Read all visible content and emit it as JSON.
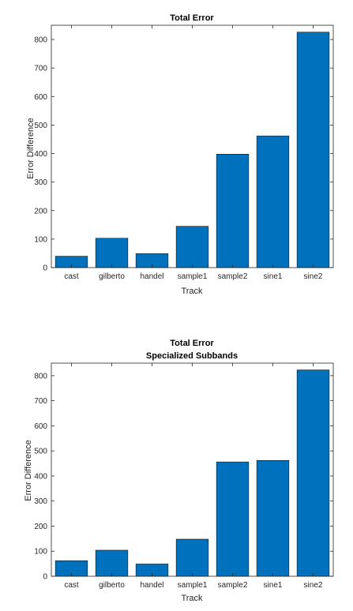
{
  "chart_data": [
    {
      "type": "bar",
      "title": "Total Error",
      "subtitle": "",
      "xlabel": "Track",
      "ylabel": "Error Difference",
      "categories": [
        "cast",
        "gilberto",
        "handel",
        "sample1",
        "sample2",
        "sine1",
        "sine2"
      ],
      "values": [
        40,
        103,
        49,
        145,
        398,
        462,
        826
      ],
      "ylim": [
        0,
        850
      ],
      "yticks": [
        0,
        100,
        200,
        300,
        400,
        500,
        600,
        700,
        800
      ],
      "grid": false,
      "bar_color": "#0072bd"
    },
    {
      "type": "bar",
      "title": "Total Error",
      "subtitle": "Specialized Subbands",
      "xlabel": "Track",
      "ylabel": "Error Difference",
      "categories": [
        "cast",
        "gilberto",
        "handel",
        "sample1",
        "sample2",
        "sine1",
        "sine2"
      ],
      "values": [
        62,
        104,
        49,
        148,
        456,
        462,
        823
      ],
      "ylim": [
        0,
        850
      ],
      "yticks": [
        0,
        100,
        200,
        300,
        400,
        500,
        600,
        700,
        800
      ],
      "grid": false,
      "bar_color": "#0072bd"
    }
  ]
}
